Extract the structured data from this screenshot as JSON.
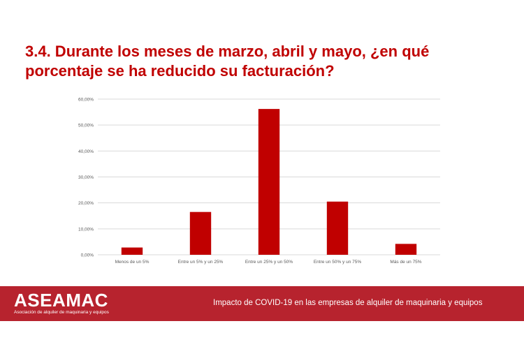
{
  "title": "3.4. Durante los meses de marzo, abril y mayo, ¿en qué porcentaje se ha reducido su facturación?",
  "colors": {
    "title": "#c00000",
    "bar": "#c00000",
    "footer": "#b7232e",
    "grid": "#d9d9d9",
    "tick_text": "#595959"
  },
  "footer": {
    "logo": "ASEAMAC",
    "logo_tagline": "Asociación de alquiler de maquinaria y equipos",
    "caption": "Impacto de COVID-19 en las empresas de alquiler de maquinaria y equipos"
  },
  "chart_data": {
    "type": "bar",
    "categories": [
      "Menos de un 5%",
      "Entre un 5% y un 25%",
      "Entre un 25% y un 50%",
      "Entre un 50% y un 75%",
      "Más de un 75%"
    ],
    "values": [
      2.8,
      16.5,
      56.2,
      20.5,
      4.2
    ],
    "ylim": [
      0,
      60
    ],
    "yticks": [
      "0,00%",
      "10,00%",
      "20,00%",
      "30,00%",
      "40,00%",
      "50,00%",
      "60,00%"
    ],
    "ytick_values": [
      0,
      10,
      20,
      30,
      40,
      50,
      60
    ],
    "grid": true,
    "legend": "none"
  }
}
